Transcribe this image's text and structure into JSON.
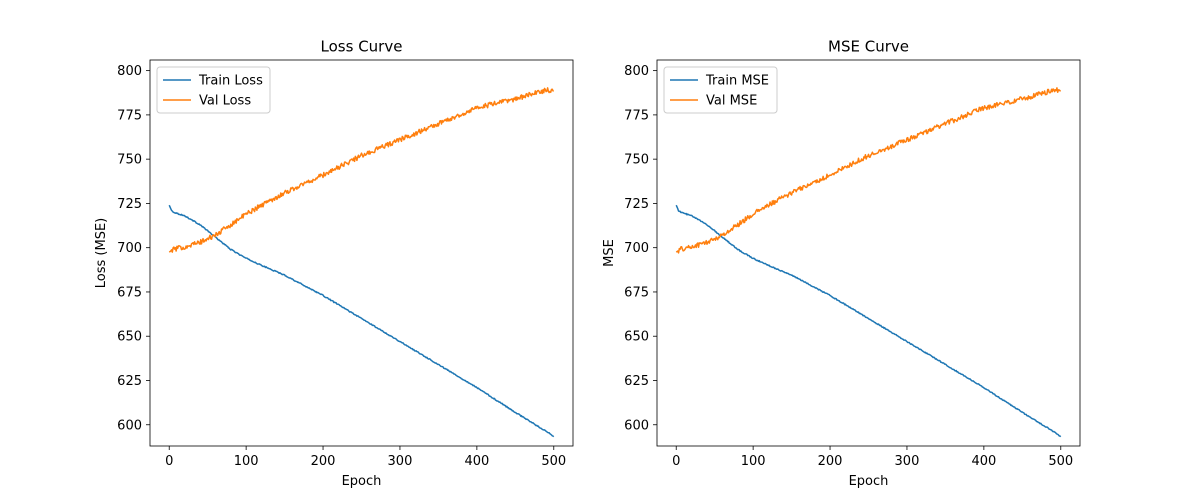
{
  "chart_data": [
    {
      "type": "line",
      "title": "Loss Curve",
      "xlabel": "Epoch",
      "ylabel": "Loss (MSE)",
      "xlim": [
        -25,
        525
      ],
      "ylim": [
        588,
        806
      ],
      "xticks": [
        0,
        100,
        200,
        300,
        400,
        500
      ],
      "yticks": [
        600,
        625,
        650,
        675,
        700,
        725,
        750,
        775,
        800
      ],
      "grid": false,
      "legend_position": "top-left",
      "series": [
        {
          "name": "Train Loss",
          "color": "#1f77b4",
          "noise": 0.3,
          "x": [
            0,
            3,
            6,
            20,
            40,
            60,
            80,
            100,
            120,
            150,
            200,
            250,
            300,
            350,
            400,
            450,
            495,
            500
          ],
          "y": [
            724,
            721,
            720,
            718,
            713,
            706,
            699,
            694,
            690,
            684.5,
            673,
            660,
            647,
            634,
            621,
            607,
            595,
            593
          ]
        },
        {
          "name": "Val Loss",
          "color": "#ff7f0e",
          "noise": 1.4,
          "x": [
            0,
            5,
            20,
            40,
            60,
            80,
            100,
            120,
            150,
            200,
            250,
            300,
            350,
            400,
            450,
            490,
            500
          ],
          "y": [
            697.5,
            699,
            700.5,
            703,
            707,
            713,
            719,
            724,
            731,
            741,
            752,
            761,
            770,
            779,
            784,
            789,
            789
          ]
        }
      ]
    },
    {
      "type": "line",
      "title": "MSE Curve",
      "xlabel": "Epoch",
      "ylabel": "MSE",
      "xlim": [
        -25,
        525
      ],
      "ylim": [
        588,
        806
      ],
      "xticks": [
        0,
        100,
        200,
        300,
        400,
        500
      ],
      "yticks": [
        600,
        625,
        650,
        675,
        700,
        725,
        750,
        775,
        800
      ],
      "grid": false,
      "legend_position": "top-left",
      "series": [
        {
          "name": "Train MSE",
          "color": "#1f77b4",
          "noise": 0.3,
          "x": [
            0,
            3,
            6,
            20,
            40,
            60,
            80,
            100,
            120,
            150,
            200,
            250,
            300,
            350,
            400,
            450,
            495,
            500
          ],
          "y": [
            724,
            721,
            720,
            718,
            713,
            706,
            699,
            694,
            690,
            684.5,
            673,
            660,
            647,
            634,
            621,
            607,
            595,
            593
          ]
        },
        {
          "name": "Val MSE",
          "color": "#ff7f0e",
          "noise": 1.4,
          "x": [
            0,
            5,
            20,
            40,
            60,
            80,
            100,
            120,
            150,
            200,
            250,
            300,
            350,
            400,
            450,
            490,
            500
          ],
          "y": [
            697.5,
            699,
            700.5,
            703,
            707,
            713,
            719,
            724,
            731,
            741,
            752,
            761,
            770,
            779,
            784,
            789,
            789
          ]
        }
      ]
    }
  ]
}
